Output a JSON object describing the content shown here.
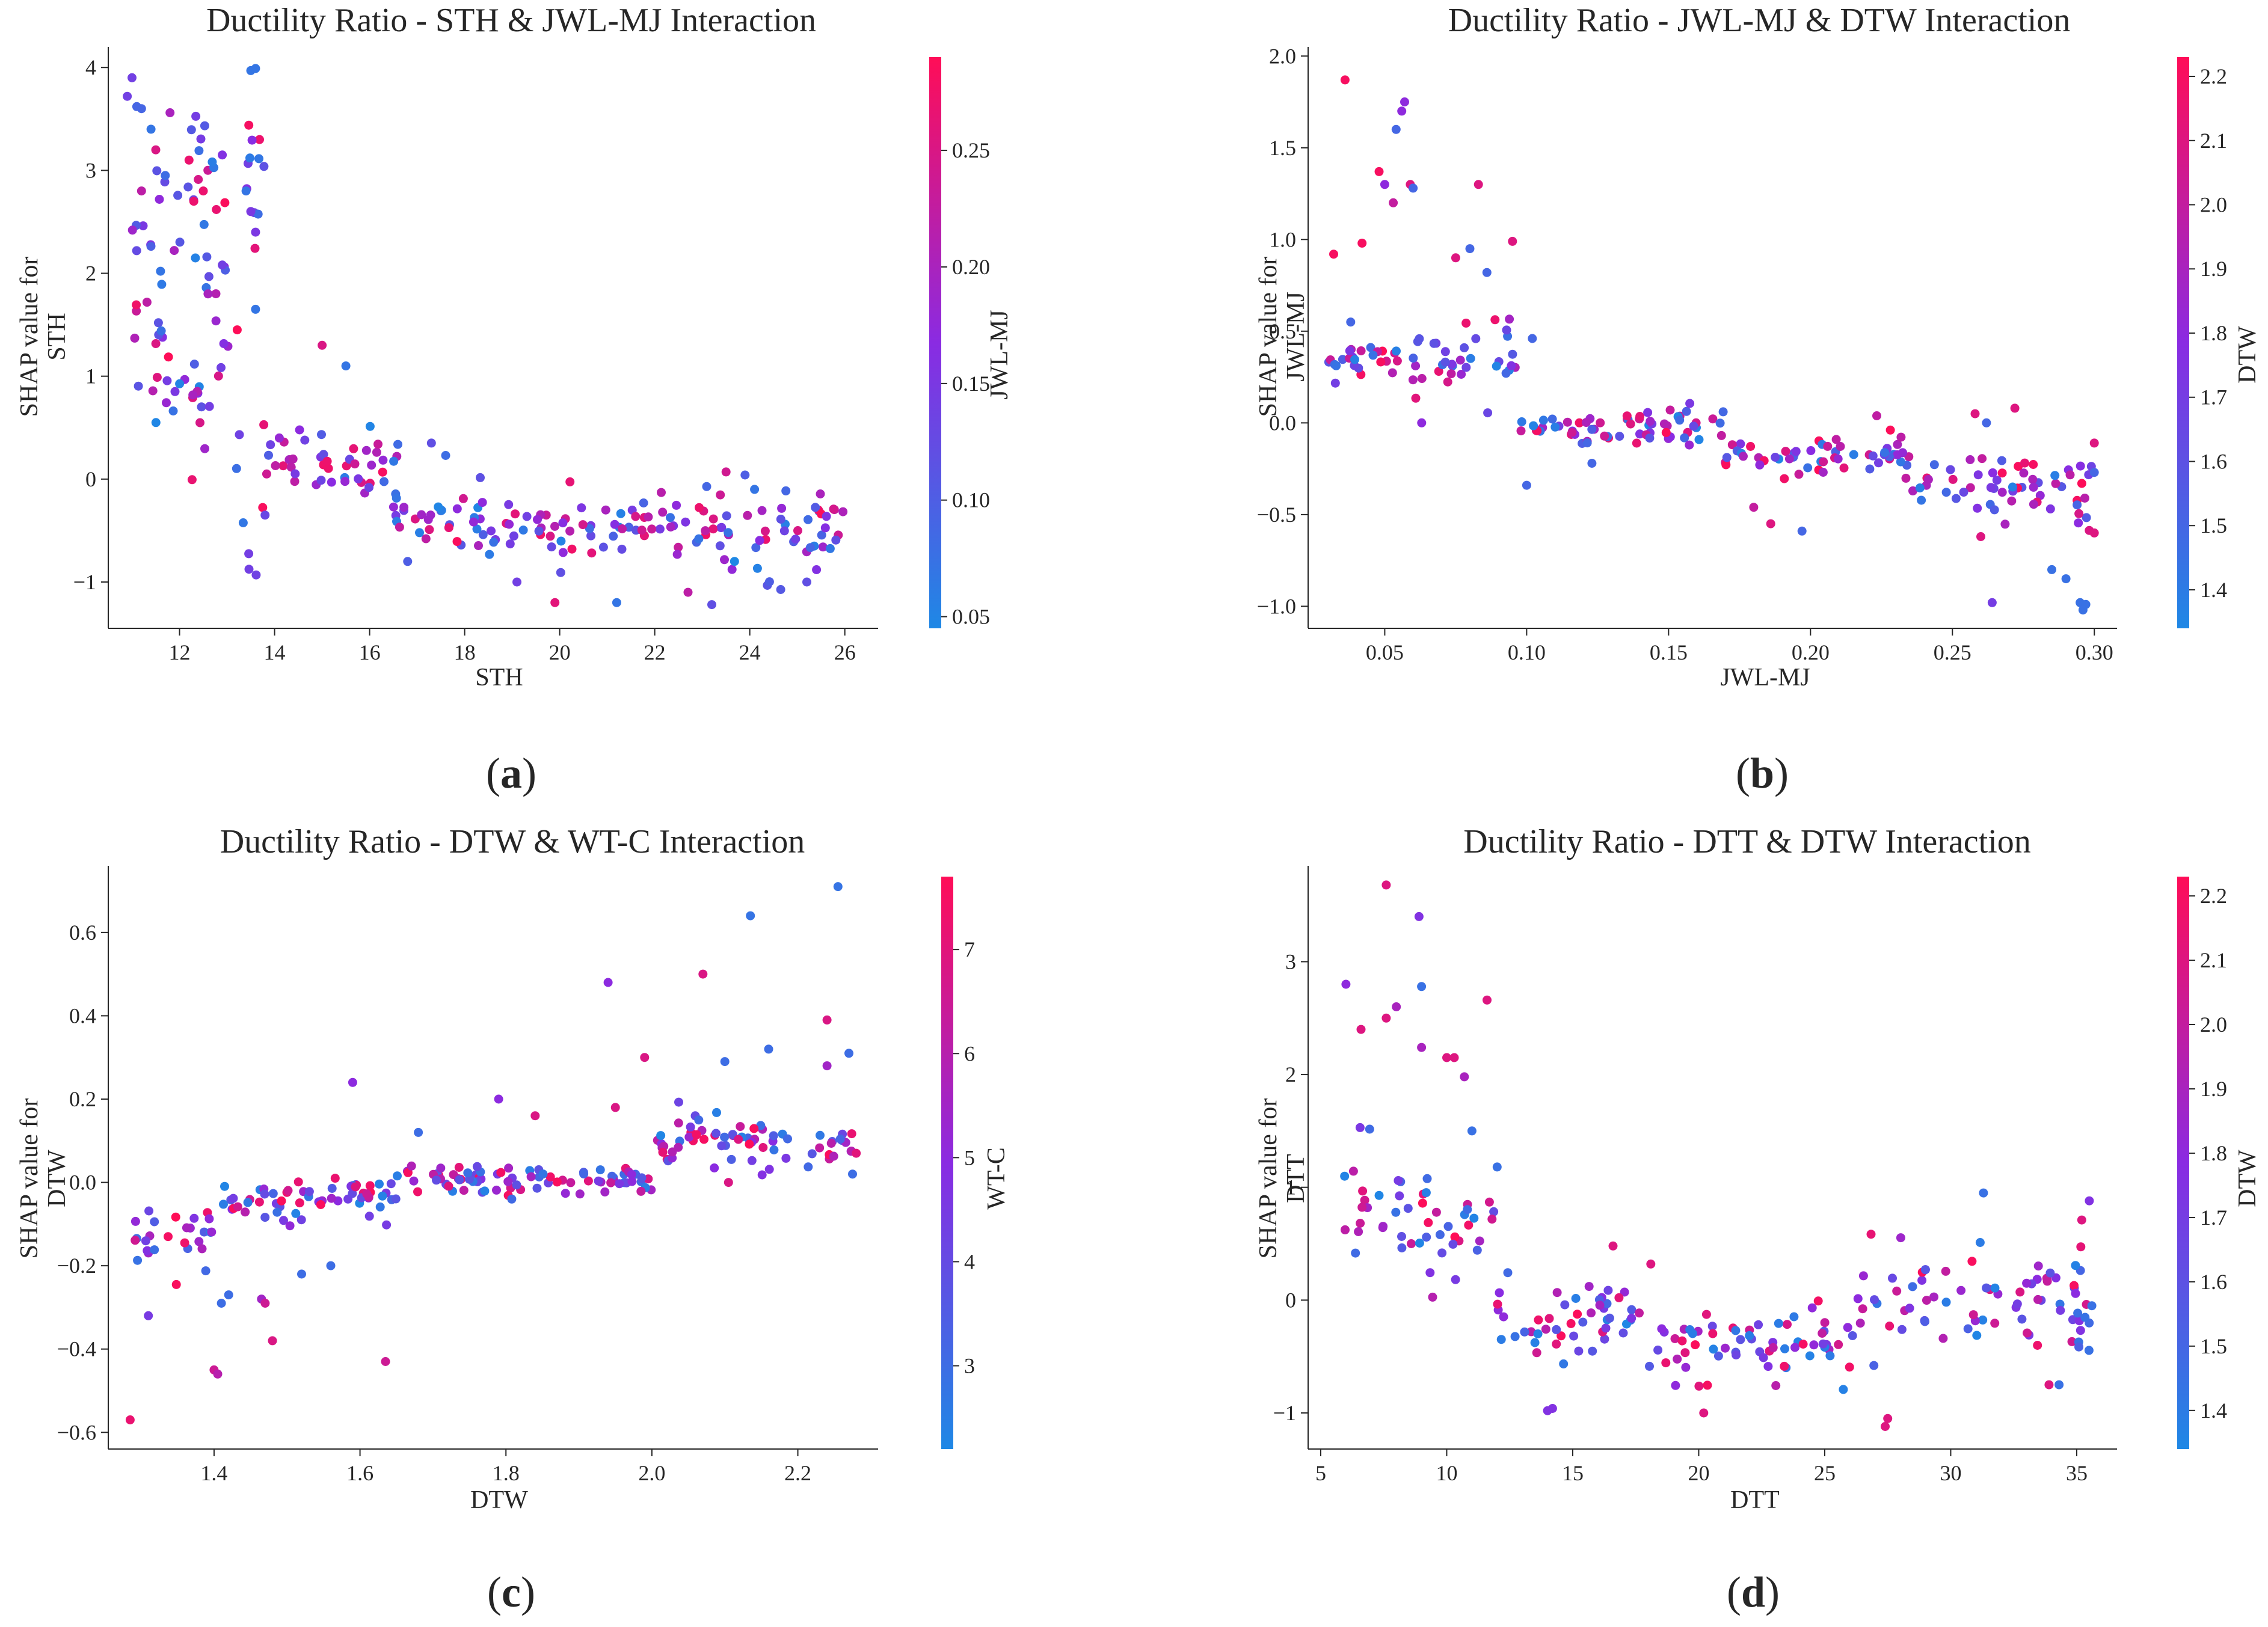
{
  "colors": {
    "low": "#1e88e5",
    "mid": "#8a2be2",
    "high": "#ff0d57",
    "axis": "#262626"
  },
  "chart_data": [
    {
      "type": "scatter",
      "label": "a",
      "title": "Ductility Ratio - STH & JWL-MJ Interaction",
      "xlabel": "STH",
      "ylabel_line1": "SHAP value for",
      "ylabel_line2": "STH",
      "xlim": [
        10.5,
        26.7
      ],
      "ylim": [
        -1.45,
        4.2
      ],
      "xticks": [
        12,
        14,
        16,
        18,
        20,
        22,
        24,
        26
      ],
      "yticks": [
        -1,
        0,
        1,
        2,
        3,
        4
      ],
      "colorbar": {
        "label": "JWL-MJ",
        "min": 0.045,
        "max": 0.29,
        "ticks": [
          0.05,
          0.1,
          0.15,
          0.2,
          0.25
        ]
      },
      "segments": [
        {
          "x": [
            10.8,
            13.8
          ],
          "y": [
            0.6,
            1.6
          ],
          "s": [
            0.5,
            1.6
          ]
        },
        {
          "x": [
            11.0,
            13.0
          ],
          "y": [
            1.6,
            3.2
          ],
          "s": [
            0.5,
            1.2
          ]
        },
        {
          "x": [
            13.2,
            13.8
          ],
          "y": [
            2.3,
            4.0
          ],
          "s": [
            0.3,
            0.8
          ]
        },
        {
          "x": [
            13.8,
            16.6
          ],
          "y": [
            -0.3,
            0.6
          ],
          "s": [
            0.15,
            0.4
          ]
        },
        {
          "x": [
            16.5,
            18.5
          ],
          "y": [
            -0.6,
            -0.15
          ],
          "s": [
            0.15,
            0.3
          ]
        },
        {
          "x": [
            18.5,
            26.0
          ],
          "y": [
            -0.7,
            -0.3
          ],
          "s": [
            0.25,
            0.4
          ]
        }
      ],
      "points": [
        {
          "x": 10.9,
          "y": 3.72,
          "c": 0.14
        },
        {
          "x": 11.0,
          "y": 3.9,
          "c": 0.14
        },
        {
          "x": 11.1,
          "y": 3.62,
          "c": 0.09
        },
        {
          "x": 11.2,
          "y": 3.6,
          "c": 0.09
        },
        {
          "x": 11.4,
          "y": 3.4,
          "c": 0.07
        },
        {
          "x": 11.5,
          "y": 3.2,
          "c": 0.25
        },
        {
          "x": 11.8,
          "y": 3.56,
          "c": 0.2
        },
        {
          "x": 12.2,
          "y": 3.1,
          "c": 0.27
        },
        {
          "x": 12.3,
          "y": 2.7,
          "c": 0.27
        },
        {
          "x": 12.5,
          "y": 2.8,
          "c": 0.27
        },
        {
          "x": 12.9,
          "y": 3.15,
          "c": 0.16
        },
        {
          "x": 11.7,
          "y": 2.95,
          "c": 0.08
        },
        {
          "x": 13.5,
          "y": 3.97,
          "c": 0.07
        },
        {
          "x": 13.6,
          "y": 3.99,
          "c": 0.07
        },
        {
          "x": 13.4,
          "y": 2.8,
          "c": 0.07
        },
        {
          "x": 13.5,
          "y": 2.6,
          "c": 0.15
        },
        {
          "x": 13.6,
          "y": 2.4,
          "c": 0.15
        },
        {
          "x": 11.6,
          "y": 2.02,
          "c": 0.07
        },
        {
          "x": 12.9,
          "y": 2.08,
          "c": 0.14
        },
        {
          "x": 12.6,
          "y": 1.8,
          "c": 0.2
        },
        {
          "x": 11.2,
          "y": 2.8,
          "c": 0.22
        },
        {
          "x": 13.6,
          "y": 1.65,
          "c": 0.07
        },
        {
          "x": 15.5,
          "y": 1.1,
          "c": 0.07
        },
        {
          "x": 15.0,
          "y": 1.3,
          "c": 0.25
        },
        {
          "x": 14.1,
          "y": 0.4,
          "c": 0.18
        },
        {
          "x": 13.8,
          "y": -0.35,
          "c": 0.13
        },
        {
          "x": 17.3,
          "y": 0.35,
          "c": 0.12
        },
        {
          "x": 17.6,
          "y": 0.23,
          "c": 0.08
        },
        {
          "x": 21.2,
          "y": -1.2,
          "c": 0.07
        },
        {
          "x": 19.9,
          "y": -1.2,
          "c": 0.26
        },
        {
          "x": 23.2,
          "y": -1.22,
          "c": 0.12
        },
        {
          "x": 23.5,
          "y": 0.07,
          "c": 0.24
        },
        {
          "x": 23.9,
          "y": 0.04,
          "c": 0.1
        },
        {
          "x": 24.1,
          "y": -0.1,
          "c": 0.07
        },
        {
          "x": 22.7,
          "y": -1.1,
          "c": 0.22
        },
        {
          "x": 25.2,
          "y": -1.0,
          "c": 0.12
        },
        {
          "x": 16.8,
          "y": -0.8,
          "c": 0.1
        },
        {
          "x": 19.1,
          "y": -1.0,
          "c": 0.14
        }
      ]
    },
    {
      "type": "scatter",
      "label": "b",
      "title": "Ductility Ratio - JWL-MJ & DTW Interaction",
      "xlabel": "JWL-MJ",
      "ylabel_line1": "SHAP value for",
      "ylabel_line2": "JWL-MJ",
      "xlim": [
        0.023,
        0.308
      ],
      "ylim": [
        -1.12,
        2.05
      ],
      "xticks": [
        0.05,
        0.1,
        0.15,
        0.2,
        0.25,
        0.3
      ],
      "yticks": [
        -1.0,
        -0.5,
        0.0,
        0.5,
        1.0,
        1.5,
        2.0
      ],
      "colorbar": {
        "label": "DTW",
        "min": 1.34,
        "max": 2.23,
        "ticks": [
          1.4,
          1.5,
          1.6,
          1.7,
          1.8,
          1.9,
          2.0,
          2.1,
          2.2
        ]
      },
      "segments": [
        {
          "x": [
            0.03,
            0.097
          ],
          "y": [
            0.15,
            0.55
          ],
          "s": [
            0.08,
            0.18
          ]
        },
        {
          "x": [
            0.097,
            0.17
          ],
          "y": [
            -0.15,
            0.1
          ],
          "s": [
            0.05,
            0.1
          ]
        },
        {
          "x": [
            0.17,
            0.235
          ],
          "y": [
            -0.3,
            -0.05
          ],
          "s": [
            0.08,
            0.12
          ]
        },
        {
          "x": [
            0.235,
            0.3
          ],
          "y": [
            -0.6,
            -0.1
          ],
          "s": [
            0.12,
            0.2
          ]
        }
      ],
      "points": [
        {
          "x": 0.032,
          "y": 0.92,
          "c": 2.2
        },
        {
          "x": 0.036,
          "y": 1.87,
          "c": 2.2
        },
        {
          "x": 0.038,
          "y": 0.55,
          "c": 1.5
        },
        {
          "x": 0.042,
          "y": 0.98,
          "c": 2.2
        },
        {
          "x": 0.048,
          "y": 1.37,
          "c": 2.2
        },
        {
          "x": 0.05,
          "y": 1.3,
          "c": 1.8
        },
        {
          "x": 0.053,
          "y": 1.2,
          "c": 2.0
        },
        {
          "x": 0.054,
          "y": 1.6,
          "c": 1.5
        },
        {
          "x": 0.056,
          "y": 1.7,
          "c": 1.8
        },
        {
          "x": 0.057,
          "y": 1.75,
          "c": 1.8
        },
        {
          "x": 0.059,
          "y": 1.3,
          "c": 2.1
        },
        {
          "x": 0.06,
          "y": 1.28,
          "c": 1.5
        },
        {
          "x": 0.063,
          "y": 0.0,
          "c": 1.8
        },
        {
          "x": 0.075,
          "y": 0.9,
          "c": 2.1
        },
        {
          "x": 0.08,
          "y": 0.95,
          "c": 1.5
        },
        {
          "x": 0.083,
          "y": 1.3,
          "c": 2.1
        },
        {
          "x": 0.086,
          "y": 0.82,
          "c": 1.5
        },
        {
          "x": 0.095,
          "y": 0.99,
          "c": 2.1
        },
        {
          "x": 0.1,
          "y": -0.34,
          "c": 1.5
        },
        {
          "x": 0.102,
          "y": 0.46,
          "c": 1.5
        },
        {
          "x": 0.123,
          "y": -0.22,
          "c": 1.5
        },
        {
          "x": 0.18,
          "y": -0.46,
          "c": 2.0
        },
        {
          "x": 0.197,
          "y": -0.59,
          "c": 1.5
        },
        {
          "x": 0.186,
          "y": -0.55,
          "c": 2.1
        },
        {
          "x": 0.26,
          "y": -0.62,
          "c": 2.1
        },
        {
          "x": 0.264,
          "y": -0.98,
          "c": 1.7
        },
        {
          "x": 0.285,
          "y": -0.8,
          "c": 1.45
        },
        {
          "x": 0.29,
          "y": -0.85,
          "c": 1.45
        },
        {
          "x": 0.295,
          "y": -0.98,
          "c": 1.45
        },
        {
          "x": 0.296,
          "y": -1.02,
          "c": 1.45
        },
        {
          "x": 0.297,
          "y": -0.99,
          "c": 1.45
        },
        {
          "x": 0.3,
          "y": -0.6,
          "c": 2.1
        },
        {
          "x": 0.272,
          "y": 0.08,
          "c": 2.1
        },
        {
          "x": 0.258,
          "y": 0.05,
          "c": 2.1
        },
        {
          "x": 0.262,
          "y": 0.0,
          "c": 1.5
        },
        {
          "x": 0.3,
          "y": -0.27,
          "c": 1.5
        },
        {
          "x": 0.3,
          "y": -0.11,
          "c": 2.1
        }
      ]
    },
    {
      "type": "scatter",
      "label": "c",
      "title": "Ductility Ratio - DTW & WT-C Interaction",
      "xlabel": "DTW",
      "ylabel_line1": "SHAP value for",
      "ylabel_line2": "DTW",
      "xlim": [
        1.255,
        2.31
      ],
      "ylim": [
        -0.64,
        0.76
      ],
      "xticks": [
        1.4,
        1.6,
        1.8,
        2.0,
        2.2
      ],
      "yticks": [
        -0.6,
        -0.4,
        -0.2,
        0.0,
        0.2,
        0.4,
        0.6
      ],
      "colorbar": {
        "label": "WT-C",
        "min": 2.2,
        "max": 7.7,
        "ticks": [
          3,
          4,
          5,
          6,
          7
        ]
      },
      "segments": [
        {
          "x": [
            1.29,
            1.4
          ],
          "y": [
            -0.2,
            -0.06
          ],
          "s": [
            0.05,
            0.08
          ]
        },
        {
          "x": [
            1.4,
            1.65
          ],
          "y": [
            -0.07,
            0.0
          ],
          "s": [
            0.03,
            0.04
          ]
        },
        {
          "x": [
            1.65,
            2.0
          ],
          "y": [
            -0.01,
            0.02
          ],
          "s": [
            0.03,
            0.03
          ]
        },
        {
          "x": [
            2.0,
            2.28
          ],
          "y": [
            0.02,
            0.18
          ],
          "s": [
            0.04,
            0.07
          ]
        }
      ],
      "points": [
        {
          "x": 1.285,
          "y": -0.57,
          "c": 7.2
        },
        {
          "x": 1.4,
          "y": -0.45,
          "c": 6.5
        },
        {
          "x": 1.405,
          "y": -0.46,
          "c": 6.0
        },
        {
          "x": 1.48,
          "y": -0.38,
          "c": 6.8
        },
        {
          "x": 1.465,
          "y": -0.28,
          "c": 5.5
        },
        {
          "x": 1.47,
          "y": -0.29,
          "c": 6.5
        },
        {
          "x": 1.41,
          "y": -0.29,
          "c": 3.0
        },
        {
          "x": 1.42,
          "y": -0.27,
          "c": 3.0
        },
        {
          "x": 1.52,
          "y": -0.22,
          "c": 3.0
        },
        {
          "x": 1.56,
          "y": -0.2,
          "c": 3.0
        },
        {
          "x": 1.59,
          "y": 0.24,
          "c": 5.0
        },
        {
          "x": 1.635,
          "y": -0.43,
          "c": 6.5
        },
        {
          "x": 1.31,
          "y": -0.32,
          "c": 4.5
        },
        {
          "x": 1.68,
          "y": 0.12,
          "c": 3.0
        },
        {
          "x": 1.79,
          "y": 0.2,
          "c": 5.0
        },
        {
          "x": 1.84,
          "y": 0.16,
          "c": 6.8
        },
        {
          "x": 1.94,
          "y": 0.48,
          "c": 5.0
        },
        {
          "x": 1.95,
          "y": 0.18,
          "c": 6.8
        },
        {
          "x": 1.99,
          "y": 0.3,
          "c": 6.8
        },
        {
          "x": 2.07,
          "y": 0.5,
          "c": 6.8
        },
        {
          "x": 2.1,
          "y": 0.29,
          "c": 3.0
        },
        {
          "x": 2.135,
          "y": 0.64,
          "c": 2.8
        },
        {
          "x": 2.16,
          "y": 0.32,
          "c": 3.0
        },
        {
          "x": 2.24,
          "y": 0.39,
          "c": 6.8
        },
        {
          "x": 2.255,
          "y": 0.71,
          "c": 2.8
        },
        {
          "x": 2.27,
          "y": 0.31,
          "c": 3.0
        },
        {
          "x": 2.275,
          "y": 0.02,
          "c": 3.0
        },
        {
          "x": 2.105,
          "y": 0.0,
          "c": 6.8
        },
        {
          "x": 2.28,
          "y": 0.07,
          "c": 7.0
        },
        {
          "x": 2.24,
          "y": 0.28,
          "c": 5.5
        }
      ]
    },
    {
      "type": "scatter",
      "label": "d",
      "title": "Ductility Ratio - DTT & DTW Interaction",
      "xlabel": "DTT",
      "ylabel_line1": "SHAP value for",
      "ylabel_line2": "DTT",
      "xlim": [
        4.5,
        36.6
      ],
      "ylim": [
        -1.32,
        3.85
      ],
      "xticks": [
        5,
        10,
        15,
        20,
        25,
        30,
        35
      ],
      "yticks": [
        -1,
        0,
        1,
        2,
        3
      ],
      "colorbar": {
        "label": "DTW",
        "min": 1.34,
        "max": 2.23,
        "ticks": [
          1.4,
          1.5,
          1.6,
          1.7,
          1.8,
          1.9,
          2.0,
          2.1,
          2.2
        ]
      },
      "segments": [
        {
          "x": [
            5.8,
            8.2
          ],
          "y": [
            0.4,
            1.3
          ],
          "s": [
            0.4,
            0.5
          ]
        },
        {
          "x": [
            8.2,
            12.0
          ],
          "y": [
            0.1,
            1.1
          ],
          "s": [
            0.3,
            0.5
          ]
        },
        {
          "x": [
            12.0,
            18.0
          ],
          "y": [
            -0.4,
            0.0
          ],
          "s": [
            0.3,
            0.3
          ]
        },
        {
          "x": [
            18.0,
            26.0
          ],
          "y": [
            -0.5,
            -0.3
          ],
          "s": [
            0.25,
            0.3
          ]
        },
        {
          "x": [
            26.0,
            35.5
          ],
          "y": [
            -0.3,
            0.3
          ],
          "s": [
            0.4,
            0.45
          ]
        }
      ],
      "points": [
        {
          "x": 6.0,
          "y": 2.8,
          "c": 1.8
        },
        {
          "x": 6.6,
          "y": 2.4,
          "c": 2.1
        },
        {
          "x": 7.6,
          "y": 3.68,
          "c": 2.1
        },
        {
          "x": 8.0,
          "y": 2.6,
          "c": 1.9
        },
        {
          "x": 8.9,
          "y": 3.4,
          "c": 1.75
        },
        {
          "x": 9.0,
          "y": 2.78,
          "c": 1.45
        },
        {
          "x": 7.6,
          "y": 2.5,
          "c": 2.1
        },
        {
          "x": 9.0,
          "y": 2.24,
          "c": 1.9
        },
        {
          "x": 10.0,
          "y": 2.15,
          "c": 2.1
        },
        {
          "x": 10.3,
          "y": 2.15,
          "c": 2.1
        },
        {
          "x": 11.6,
          "y": 2.66,
          "c": 2.1
        },
        {
          "x": 10.7,
          "y": 1.98,
          "c": 1.9
        },
        {
          "x": 11.0,
          "y": 1.5,
          "c": 1.45
        },
        {
          "x": 12.0,
          "y": 1.18,
          "c": 1.45
        },
        {
          "x": 14.0,
          "y": -0.98,
          "c": 1.75
        },
        {
          "x": 14.2,
          "y": -0.96,
          "c": 1.75
        },
        {
          "x": 20.2,
          "y": -1.0,
          "c": 2.1
        },
        {
          "x": 27.4,
          "y": -1.12,
          "c": 2.1
        },
        {
          "x": 27.5,
          "y": -1.05,
          "c": 2.1
        },
        {
          "x": 31.3,
          "y": 0.95,
          "c": 1.45
        },
        {
          "x": 35.5,
          "y": 0.88,
          "c": 1.75
        },
        {
          "x": 35.2,
          "y": 0.71,
          "c": 2.1
        },
        {
          "x": 35.6,
          "y": -0.05,
          "c": 1.45
        },
        {
          "x": 33.9,
          "y": -0.75,
          "c": 2.1
        },
        {
          "x": 34.3,
          "y": -0.75,
          "c": 1.45
        },
        {
          "x": 16.6,
          "y": 0.48,
          "c": 2.1
        },
        {
          "x": 18.1,
          "y": 0.32,
          "c": 2.1
        }
      ]
    }
  ],
  "panel_labels": [
    "(a)",
    "(b)",
    "(c)",
    "(d)"
  ]
}
